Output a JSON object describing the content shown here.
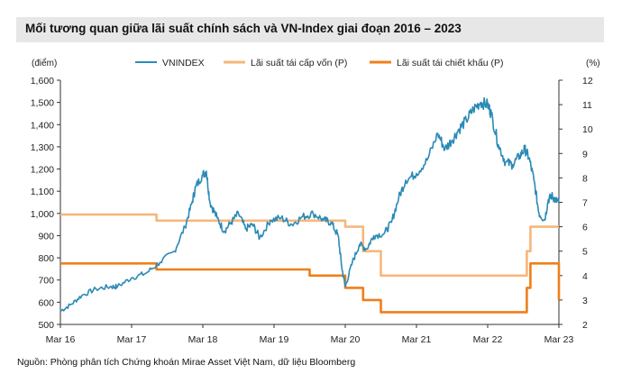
{
  "title": "Mối tương quan giữa lãi suất chính sách và VN-Index giai đoạn 2016 – 2023",
  "source": "Nguồn: Phòng phân tích Chứng khoán Mirae Asset Việt Nam, dữ liệu Bloomberg",
  "colors": {
    "vnindex": "#2b8ab6",
    "refinance": "#f6b77b",
    "discount": "#ef7f1a",
    "title_bg": "#e7e7e7"
  },
  "chart_data": {
    "type": "line",
    "left_unit": "(điểm)",
    "right_unit": "(%)",
    "left_ylim": [
      500,
      1600
    ],
    "right_ylim": [
      2,
      12
    ],
    "left_ticks": [
      "500",
      "600",
      "700",
      "800",
      "900",
      "1,000",
      "1,100",
      "1,200",
      "1,300",
      "1,400",
      "1,500",
      "1,600"
    ],
    "right_ticks": [
      "2",
      "3",
      "4",
      "5",
      "6",
      "7",
      "8",
      "9",
      "10",
      "11",
      "12"
    ],
    "x_ticks": [
      "Mar 16",
      "Mar 17",
      "Mar 18",
      "Mar 19",
      "Mar 20",
      "Mar 21",
      "Mar 22",
      "Mar 23"
    ],
    "xlim": [
      2016.2,
      2023.2
    ],
    "legend": [
      "VNINDEX",
      "Lãi suất tái cấp vốn (P)",
      "Lãi suất tái chiết khấu (P)"
    ],
    "series": [
      {
        "name": "VNINDEX",
        "axis": "left",
        "points": [
          [
            2016.2,
            560
          ],
          [
            2016.35,
            590
          ],
          [
            2016.5,
            630
          ],
          [
            2016.7,
            660
          ],
          [
            2016.9,
            670
          ],
          [
            2017.0,
            670
          ],
          [
            2017.2,
            710
          ],
          [
            2017.4,
            730
          ],
          [
            2017.6,
            780
          ],
          [
            2017.8,
            830
          ],
          [
            2017.95,
            940
          ],
          [
            2018.05,
            1050
          ],
          [
            2018.1,
            1120
          ],
          [
            2018.2,
            1175
          ],
          [
            2018.25,
            1190
          ],
          [
            2018.3,
            1050
          ],
          [
            2018.4,
            980
          ],
          [
            2018.5,
            920
          ],
          [
            2018.6,
            960
          ],
          [
            2018.7,
            1000
          ],
          [
            2018.8,
            930
          ],
          [
            2018.9,
            950
          ],
          [
            2019.0,
            890
          ],
          [
            2019.15,
            970
          ],
          [
            2019.3,
            980
          ],
          [
            2019.45,
            950
          ],
          [
            2019.6,
            985
          ],
          [
            2019.75,
            1000
          ],
          [
            2019.9,
            970
          ],
          [
            2020.0,
            960
          ],
          [
            2020.1,
            900
          ],
          [
            2020.15,
            760
          ],
          [
            2020.2,
            670
          ],
          [
            2020.3,
            780
          ],
          [
            2020.4,
            860
          ],
          [
            2020.5,
            840
          ],
          [
            2020.6,
            900
          ],
          [
            2020.75,
            910
          ],
          [
            2020.85,
            960
          ],
          [
            2020.95,
            1070
          ],
          [
            2021.05,
            1150
          ],
          [
            2021.2,
            1180
          ],
          [
            2021.35,
            1240
          ],
          [
            2021.5,
            1360
          ],
          [
            2021.6,
            1290
          ],
          [
            2021.7,
            1330
          ],
          [
            2021.8,
            1380
          ],
          [
            2021.9,
            1420
          ],
          [
            2022.0,
            1470
          ],
          [
            2022.1,
            1500
          ],
          [
            2022.2,
            1490
          ],
          [
            2022.25,
            1450
          ],
          [
            2022.35,
            1310
          ],
          [
            2022.45,
            1230
          ],
          [
            2022.55,
            1220
          ],
          [
            2022.65,
            1260
          ],
          [
            2022.72,
            1290
          ],
          [
            2022.78,
            1250
          ],
          [
            2022.85,
            1150
          ],
          [
            2022.92,
            1000
          ],
          [
            2023.0,
            970
          ],
          [
            2023.05,
            1060
          ],
          [
            2023.1,
            1080
          ],
          [
            2023.15,
            1060
          ],
          [
            2023.2,
            1050
          ]
        ]
      },
      {
        "name": "Lãi suất tái cấp vốn (P)",
        "axis": "right",
        "points": [
          [
            2016.2,
            6.5
          ],
          [
            2017.55,
            6.5
          ],
          [
            2017.55,
            6.25
          ],
          [
            2020.2,
            6.25
          ],
          [
            2020.2,
            6.0
          ],
          [
            2020.45,
            6.0
          ],
          [
            2020.45,
            5.0
          ],
          [
            2020.7,
            5.0
          ],
          [
            2020.7,
            4.0
          ],
          [
            2022.75,
            4.0
          ],
          [
            2022.75,
            5.0
          ],
          [
            2022.8,
            5.0
          ],
          [
            2022.8,
            6.0
          ],
          [
            2023.2,
            6.0
          ]
        ]
      },
      {
        "name": "Lãi suất tái chiết khấu (P)",
        "axis": "right",
        "points": [
          [
            2016.2,
            4.5
          ],
          [
            2017.55,
            4.5
          ],
          [
            2017.55,
            4.25
          ],
          [
            2019.7,
            4.25
          ],
          [
            2019.7,
            4.0
          ],
          [
            2020.2,
            4.0
          ],
          [
            2020.2,
            3.5
          ],
          [
            2020.45,
            3.5
          ],
          [
            2020.45,
            3.0
          ],
          [
            2020.7,
            3.0
          ],
          [
            2020.7,
            2.5
          ],
          [
            2022.75,
            2.5
          ],
          [
            2022.75,
            3.5
          ],
          [
            2022.8,
            3.5
          ],
          [
            2022.8,
            4.5
          ],
          [
            2023.2,
            4.5
          ],
          [
            2023.2,
            3.0
          ]
        ]
      }
    ]
  }
}
